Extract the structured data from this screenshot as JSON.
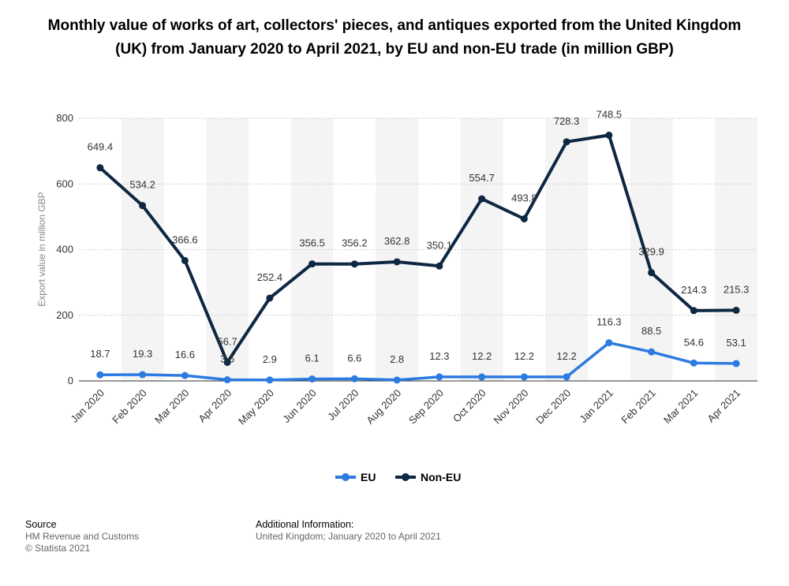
{
  "title": "Monthly value of works of art, collectors' pieces, and antiques exported from the United Kingdom (UK) from January 2020 to April 2021, by EU and non-EU trade (in million GBP)",
  "chart_data": {
    "type": "line",
    "x": [
      "Jan 2020",
      "Feb 2020",
      "Mar 2020",
      "Apr 2020",
      "May 2020",
      "Jun 2020",
      "Jul 2020",
      "Aug 2020",
      "Sep 2020",
      "Oct 2020",
      "Nov 2020",
      "Dec 2020",
      "Jan 2021",
      "Feb 2021",
      "Mar 2021",
      "Apr 2021"
    ],
    "series": [
      {
        "name": "EU",
        "color": "#2b7be0",
        "values": [
          18.7,
          19.3,
          16.6,
          3.6,
          2.9,
          6.1,
          6.6,
          2.8,
          12.3,
          12.2,
          12.2,
          12.2,
          116.3,
          88.5,
          54.6,
          53.1
        ],
        "labels": [
          "18.7",
          "19.3",
          "16.6",
          "3.6",
          "2.9",
          "6.1",
          "6.6",
          "2.8",
          "12.3",
          "12.2",
          "12.2",
          "12.2",
          "116.3",
          "88.5",
          "54.6",
          "53.1"
        ]
      },
      {
        "name": "Non-EU",
        "color": "#0e2742",
        "values": [
          649.4,
          534.2,
          366.6,
          56.7,
          252.4,
          356.5,
          356.2,
          362.8,
          350.1,
          554.7,
          493.8,
          728.3,
          748.5,
          329.9,
          214.3,
          215.3
        ],
        "labels": [
          "649.4",
          "534.2",
          "366.6",
          "56.7",
          "252.4",
          "356.5",
          "356.2",
          "362.8",
          "350.1",
          "554.7",
          "493.8",
          "728.3",
          "748.5",
          "329.9",
          "214.3",
          "215.3"
        ]
      }
    ],
    "ylabel": "Export value in million GBP",
    "ylim": [
      0,
      800
    ],
    "yticks": [
      "0",
      "200",
      "400",
      "600",
      "800"
    ],
    "grid": true,
    "legend": "bottom-center"
  },
  "footer": {
    "source_head": "Source",
    "source_lines": [
      "HM Revenue and Customs",
      "© Statista 2021"
    ],
    "info_head": "Additional Information:",
    "info_line": "United Kingdom; January 2020 to April 2021"
  }
}
